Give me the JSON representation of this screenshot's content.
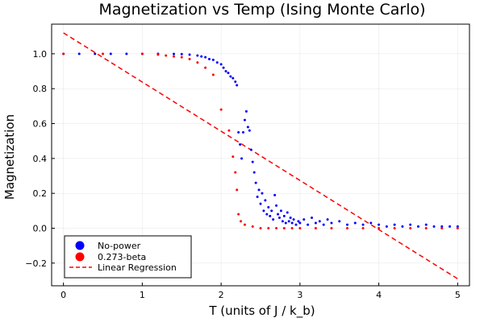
{
  "chart_data": {
    "type": "scatter",
    "title": "Magnetization vs Temp (Ising Monte Carlo)",
    "xlabel": "T (units of J / k_b)",
    "ylabel": "Magnetization",
    "xlim": [
      -0.15,
      5.15
    ],
    "ylim": [
      -0.33,
      1.17
    ],
    "xticks": [
      0,
      1,
      2,
      3,
      4,
      5
    ],
    "yticks": [
      -0.2,
      0.0,
      0.2,
      0.4,
      0.6,
      0.8,
      1.0
    ],
    "xtick_labels": [
      "0",
      "1",
      "2",
      "3",
      "4",
      "5"
    ],
    "ytick_labels": [
      "−0.2",
      "0.0",
      "0.2",
      "0.4",
      "0.6",
      "0.8",
      "1.0"
    ],
    "grid": true,
    "legend_position": "bottom-left",
    "series": [
      {
        "name": "No-power",
        "kind": "scatter",
        "color": "#0000ff",
        "points": [
          [
            0.0,
            1.0
          ],
          [
            0.2,
            1.0
          ],
          [
            0.4,
            1.0
          ],
          [
            0.6,
            1.0
          ],
          [
            0.8,
            1.0
          ],
          [
            1.0,
            1.0
          ],
          [
            1.2,
            1.0
          ],
          [
            1.4,
            0.999
          ],
          [
            1.5,
            0.998
          ],
          [
            1.6,
            0.995
          ],
          [
            1.7,
            0.99
          ],
          [
            1.75,
            0.985
          ],
          [
            1.8,
            0.98
          ],
          [
            1.85,
            0.97
          ],
          [
            1.9,
            0.965
          ],
          [
            1.95,
            0.95
          ],
          [
            2.0,
            0.94
          ],
          [
            2.03,
            0.92
          ],
          [
            2.06,
            0.9
          ],
          [
            2.09,
            0.89
          ],
          [
            2.12,
            0.87
          ],
          [
            2.15,
            0.86
          ],
          [
            2.18,
            0.84
          ],
          [
            2.2,
            0.82
          ],
          [
            2.22,
            0.55
          ],
          [
            2.24,
            0.48
          ],
          [
            2.26,
            0.4
          ],
          [
            2.28,
            0.55
          ],
          [
            2.3,
            0.62
          ],
          [
            2.32,
            0.67
          ],
          [
            2.34,
            0.58
          ],
          [
            2.36,
            0.56
          ],
          [
            2.38,
            0.45
          ],
          [
            2.4,
            0.38
          ],
          [
            2.42,
            0.32
          ],
          [
            2.44,
            0.26
          ],
          [
            2.46,
            0.18
          ],
          [
            2.48,
            0.22
          ],
          [
            2.5,
            0.14
          ],
          [
            2.52,
            0.2
          ],
          [
            2.54,
            0.1
          ],
          [
            2.56,
            0.16
          ],
          [
            2.58,
            0.08
          ],
          [
            2.6,
            0.12
          ],
          [
            2.62,
            0.07
          ],
          [
            2.64,
            0.1
          ],
          [
            2.66,
            0.05
          ],
          [
            2.68,
            0.19
          ],
          [
            2.7,
            0.13
          ],
          [
            2.72,
            0.08
          ],
          [
            2.74,
            0.06
          ],
          [
            2.76,
            0.1
          ],
          [
            2.78,
            0.04
          ],
          [
            2.8,
            0.07
          ],
          [
            2.82,
            0.03
          ],
          [
            2.84,
            0.09
          ],
          [
            2.86,
            0.04
          ],
          [
            2.88,
            0.06
          ],
          [
            2.9,
            0.03
          ],
          [
            2.92,
            0.05
          ],
          [
            2.95,
            0.02
          ],
          [
            2.98,
            0.04
          ],
          [
            3.0,
            0.03
          ],
          [
            3.05,
            0.05
          ],
          [
            3.1,
            0.02
          ],
          [
            3.15,
            0.06
          ],
          [
            3.2,
            0.03
          ],
          [
            3.25,
            0.04
          ],
          [
            3.3,
            0.02
          ],
          [
            3.35,
            0.05
          ],
          [
            3.4,
            0.03
          ],
          [
            3.5,
            0.04
          ],
          [
            3.6,
            0.02
          ],
          [
            3.7,
            0.03
          ],
          [
            3.8,
            0.02
          ],
          [
            3.9,
            0.03
          ],
          [
            4.0,
            0.02
          ],
          [
            4.1,
            0.01
          ],
          [
            4.2,
            0.02
          ],
          [
            4.3,
            0.01
          ],
          [
            4.4,
            0.02
          ],
          [
            4.5,
            0.01
          ],
          [
            4.6,
            0.02
          ],
          [
            4.7,
            0.01
          ],
          [
            4.8,
            0.01
          ],
          [
            4.9,
            0.01
          ],
          [
            5.0,
            0.01
          ]
        ]
      },
      {
        "name": "0.273-beta",
        "kind": "scatter",
        "color": "#ff0000",
        "points": [
          [
            0.0,
            1.0
          ],
          [
            0.5,
            1.0
          ],
          [
            1.0,
            1.0
          ],
          [
            1.2,
            0.995
          ],
          [
            1.3,
            0.99
          ],
          [
            1.4,
            0.985
          ],
          [
            1.5,
            0.98
          ],
          [
            1.6,
            0.97
          ],
          [
            1.7,
            0.95
          ],
          [
            1.8,
            0.92
          ],
          [
            1.9,
            0.88
          ],
          [
            2.0,
            0.68
          ],
          [
            2.1,
            0.56
          ],
          [
            2.15,
            0.41
          ],
          [
            2.18,
            0.32
          ],
          [
            2.2,
            0.22
          ],
          [
            2.22,
            0.08
          ],
          [
            2.25,
            0.04
          ],
          [
            2.3,
            0.02
          ],
          [
            2.4,
            0.01
          ],
          [
            2.5,
            0.0
          ],
          [
            2.6,
            0.0
          ],
          [
            2.7,
            0.0
          ],
          [
            2.8,
            0.0
          ],
          [
            2.9,
            0.0
          ],
          [
            3.0,
            0.0
          ],
          [
            3.2,
            0.0
          ],
          [
            3.4,
            0.0
          ],
          [
            3.6,
            0.0
          ],
          [
            3.8,
            0.0
          ],
          [
            4.0,
            0.0
          ],
          [
            4.2,
            0.0
          ],
          [
            4.4,
            0.0
          ],
          [
            4.6,
            0.0
          ],
          [
            4.8,
            0.0
          ],
          [
            5.0,
            0.0
          ]
        ]
      },
      {
        "name": "Linear Regression",
        "kind": "line",
        "style": "dashed",
        "color": "#ff0000",
        "x": [
          0,
          5
        ],
        "y": [
          1.12,
          -0.29
        ]
      }
    ]
  }
}
